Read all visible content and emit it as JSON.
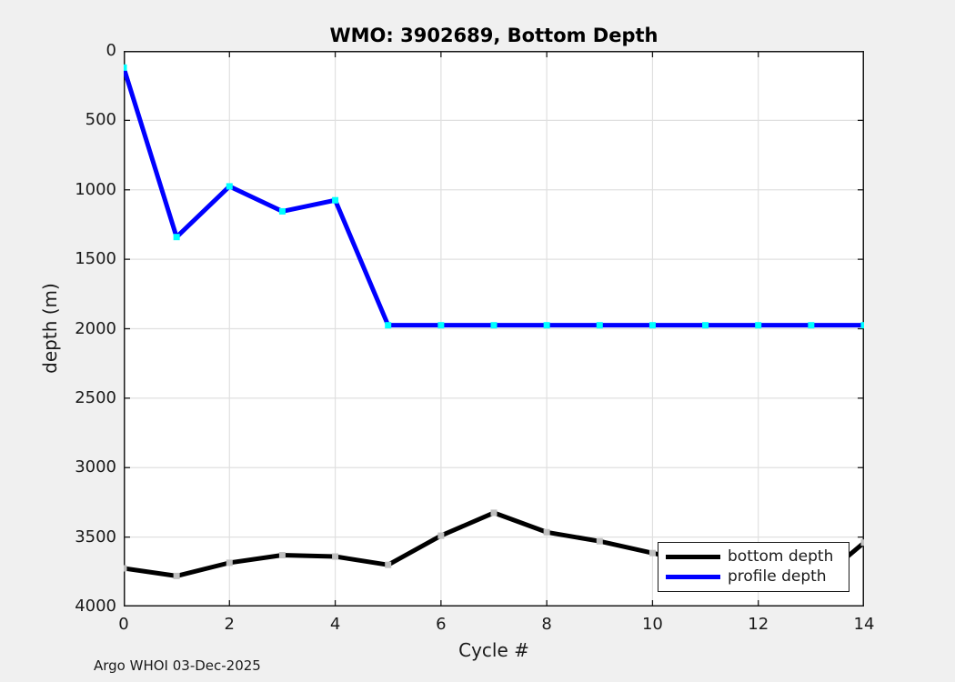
{
  "footer": "Argo WHOI 03-Dec-2025",
  "colors": {
    "figure_bg": "#F0F0F0",
    "plot_bg": "#FFFFFF",
    "grid": "#E0E0E0",
    "axis": "#1A1A1A",
    "tick_text": "#1A1A1A",
    "title_text": "#000000"
  },
  "chart_data": {
    "type": "line",
    "title": "WMO: 3902689, Bottom Depth",
    "xlabel": "Cycle #",
    "ylabel": "depth (m)",
    "x": [
      0,
      1,
      2,
      3,
      4,
      5,
      6,
      7,
      8,
      9,
      10,
      11,
      12,
      13,
      14
    ],
    "series": [
      {
        "name": "bottom depth",
        "color": "#000000",
        "marker_color": "#BFBFBF",
        "values": [
          3725,
          3780,
          3685,
          3630,
          3640,
          3700,
          3490,
          3325,
          3465,
          3530,
          3615,
          3700,
          3810,
          3860,
          3540
        ]
      },
      {
        "name": "profile depth",
        "color": "#0000FF",
        "marker_color": "#00FFFF",
        "values": [
          120,
          1340,
          975,
          1155,
          1075,
          1975,
          1975,
          1975,
          1975,
          1975,
          1975,
          1975,
          1975,
          1975,
          1975
        ]
      }
    ],
    "xlim": [
      0,
      14
    ],
    "ylim": [
      0,
      4000
    ],
    "y_axis_reversed": true,
    "x_ticks": [
      0,
      2,
      4,
      6,
      8,
      10,
      12,
      14
    ],
    "y_ticks": [
      0,
      500,
      1000,
      1500,
      2000,
      2500,
      3000,
      3500,
      4000
    ],
    "grid": true,
    "legend_position": "bottom-right"
  }
}
